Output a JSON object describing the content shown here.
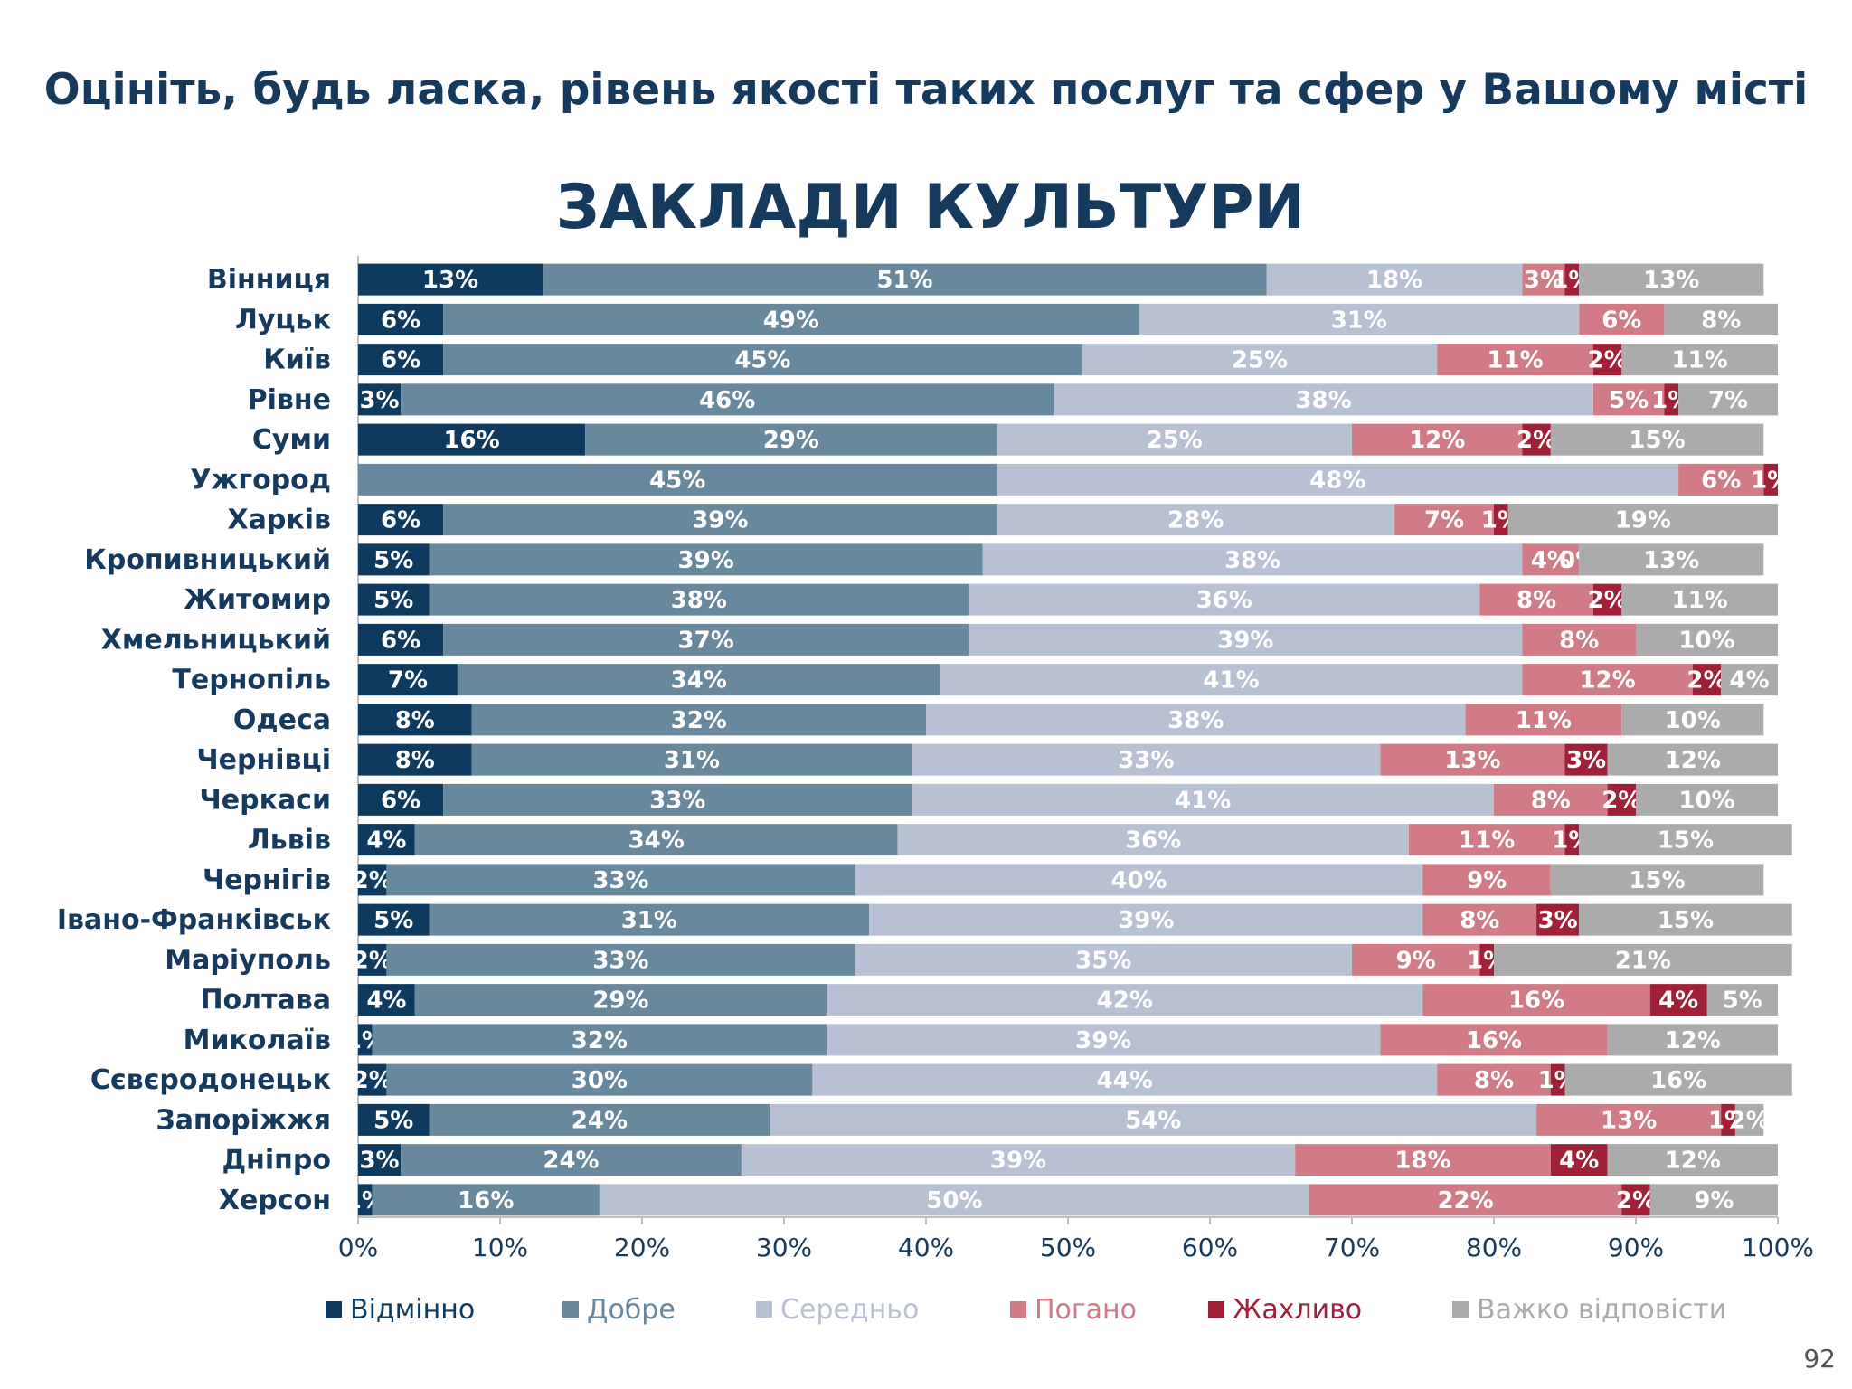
{
  "slide_title": "Оцініть, будь ласка, рівень якості таких послуг та сфер у Вашому місті",
  "page_number": "92",
  "chart_data": {
    "type": "bar",
    "orientation": "horizontal",
    "stacked": true,
    "title": "ЗАКЛАДИ КУЛЬТУРИ",
    "xlim": [
      0,
      100
    ],
    "x_ticks": [
      "0%",
      "10%",
      "20%",
      "30%",
      "40%",
      "50%",
      "60%",
      "70%",
      "80%",
      "90%",
      "100%"
    ],
    "legend_position": "bottom",
    "grid": false,
    "categories": [
      "Вінниця",
      "Луцьк",
      "Київ",
      "Рівне",
      "Суми",
      "Ужгород",
      "Харків",
      "Кропивницький",
      "Житомир",
      "Хмельницький",
      "Тернопіль",
      "Одеса",
      "Чернівці",
      "Черкаси",
      "Львів",
      "Чернігів",
      "Івано-Франківськ",
      "Маріуполь",
      "Полтава",
      "Миколаїв",
      "Сєвєродонецьк",
      "Запоріжжя",
      "Дніпро",
      "Херсон"
    ],
    "series": [
      {
        "name": "Відмінно",
        "color": "#0F3A5F",
        "label_color": "#ffffff",
        "values": [
          13,
          6,
          6,
          3,
          16,
          0,
          6,
          5,
          5,
          6,
          7,
          8,
          8,
          6,
          4,
          2,
          5,
          2,
          4,
          1,
          2,
          5,
          3,
          1
        ],
        "labels": [
          "13%",
          "6%",
          "6%",
          "3%",
          "16%",
          "",
          "6%",
          "5%",
          "5%",
          "6%",
          "7%",
          "8%",
          "8%",
          "6%",
          "4%",
          "2%",
          "5%",
          "2%",
          "4%",
          "1%",
          "2%",
          "5%",
          "3%",
          "1%"
        ]
      },
      {
        "name": "Добре",
        "color": "#68889D",
        "label_color": "#ffffff",
        "values": [
          51,
          49,
          45,
          46,
          29,
          45,
          39,
          39,
          38,
          37,
          34,
          32,
          31,
          33,
          34,
          33,
          31,
          33,
          29,
          32,
          30,
          24,
          24,
          16
        ],
        "labels": [
          "51%",
          "49%",
          "45%",
          "46%",
          "29%",
          "45%",
          "39%",
          "39%",
          "38%",
          "37%",
          "34%",
          "32%",
          "31%",
          "33%",
          "34%",
          "33%",
          "31%",
          "33%",
          "29%",
          "32%",
          "30%",
          "24%",
          "24%",
          "16%"
        ]
      },
      {
        "name": "Середньо",
        "color": "#B8C1D4",
        "label_color": "#ffffff",
        "values": [
          18,
          31,
          25,
          38,
          25,
          48,
          28,
          38,
          36,
          39,
          41,
          38,
          33,
          41,
          36,
          40,
          39,
          35,
          42,
          39,
          44,
          54,
          39,
          50
        ],
        "labels": [
          "18%",
          "31%",
          "25%",
          "38%",
          "25%",
          "48%",
          "28%",
          "38%",
          "36%",
          "39%",
          "41%",
          "38%",
          "33%",
          "41%",
          "36%",
          "40%",
          "39%",
          "35%",
          "42%",
          "39%",
          "44%",
          "54%",
          "39%",
          "50%"
        ]
      },
      {
        "name": "Погано",
        "color": "#D07B86",
        "label_color": "#ffffff",
        "values": [
          3,
          6,
          11,
          5,
          12,
          6,
          7,
          4,
          8,
          8,
          12,
          11,
          13,
          8,
          11,
          9,
          8,
          9,
          16,
          16,
          8,
          13,
          18,
          22
        ],
        "labels": [
          "3%",
          "6%",
          "11%",
          "5%",
          "12%",
          "6%",
          "7%",
          "4%",
          "8%",
          "8%",
          "12%",
          "11%",
          "13%",
          "8%",
          "11%",
          "9%",
          "8%",
          "9%",
          "16%",
          "16%",
          "8%",
          "13%",
          "18%",
          "22%"
        ]
      },
      {
        "name": "Жахливо",
        "color": "#A02038",
        "label_color": "#ffffff",
        "values": [
          1,
          0,
          2,
          1,
          2,
          1,
          1,
          0,
          2,
          0,
          2,
          0,
          3,
          2,
          1,
          0,
          3,
          1,
          4,
          0,
          1,
          1,
          4,
          2
        ],
        "labels": [
          "1%",
          "",
          "2%",
          "1%",
          "2%",
          "1%",
          "1%",
          "0%",
          "2%",
          "",
          "2%",
          "",
          "3%",
          "2%",
          "1%",
          "",
          "3%",
          "1%",
          "4%",
          "",
          "1%",
          "1%",
          "4%",
          "2%"
        ]
      },
      {
        "name": "Важко відповісти",
        "color": "#ABABAB",
        "label_color": "#ffffff",
        "values": [
          13,
          8,
          11,
          7,
          15,
          0,
          19,
          13,
          11,
          10,
          4,
          10,
          12,
          10,
          15,
          15,
          15,
          21,
          5,
          12,
          16,
          2,
          12,
          9
        ],
        "labels": [
          "13%",
          "8%",
          "11%",
          "7%",
          "15%",
          "",
          "19%",
          "13%",
          "11%",
          "10%",
          "4%",
          "10%",
          "12%",
          "10%",
          "15%",
          "15%",
          "15%",
          "21%",
          "5%",
          "12%",
          "16%",
          "2%",
          "12%",
          "9%"
        ]
      }
    ]
  }
}
